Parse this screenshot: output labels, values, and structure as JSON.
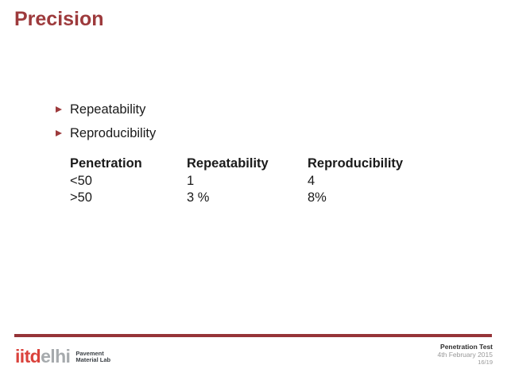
{
  "slide": {
    "title": "Precision",
    "bullets": [
      {
        "label": "Repeatability"
      },
      {
        "label": "Reproducibility"
      }
    ],
    "table": {
      "headers": [
        "Penetration",
        "Repeatability",
        "Reproducibility"
      ],
      "rows": [
        [
          "<50",
          "1",
          "4"
        ],
        [
          ">50",
          "3 %",
          "8%"
        ]
      ]
    },
    "footer": {
      "logo": {
        "red_part": "iitd",
        "gray_part": "elhi"
      },
      "lab": {
        "line1": "Pavement",
        "line2": "Material Lab"
      },
      "title": "Penetration Test",
      "date": "4th February 2015",
      "page": "16/19"
    },
    "colors": {
      "accent": "#9d3a3c",
      "footer_rule": "#963438",
      "logo_red": "#da423c",
      "logo_gray": "#a6aaad"
    }
  }
}
